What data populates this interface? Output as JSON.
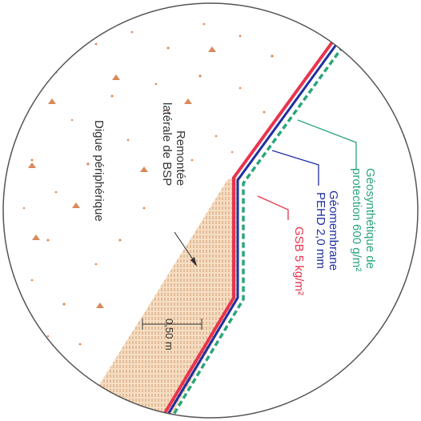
{
  "labels": {
    "geosynthetique_line1": "Géosynthétique de",
    "geosynthetique_line2": "protection 600 g/m²",
    "geomembrane_line1": "Géomembrane",
    "geomembrane_line2": "PEHD 2,0 mm",
    "gsb": "GSB 5 kg/m²",
    "remontee_line1": "Remontée",
    "remontee_line2": "latérale de BSP",
    "digue": "Digue périphérique",
    "dimension": "0,50 m"
  },
  "colors": {
    "geosynthetique": "#2aa579",
    "geomembrane": "#1f2fa0",
    "gsb": "#e8344e",
    "fill": "#e6b88a",
    "dots": "#d9895a",
    "outline": "#555555"
  }
}
